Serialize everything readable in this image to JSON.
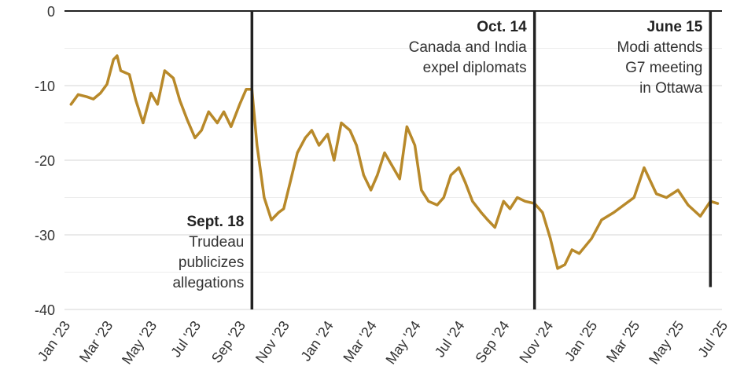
{
  "chart_data": {
    "type": "line",
    "ylim": [
      -40,
      0
    ],
    "yticks": [
      0,
      -10,
      -20,
      -30,
      -40
    ],
    "ytick_labels": [
      "0",
      "-10",
      "-20",
      "-30",
      "-40"
    ],
    "grid": "horizontal",
    "xlim": [
      "2023-01-01",
      "2025-07-01"
    ],
    "x_tick_labels": [
      "Jan '23",
      "Mar '23",
      "May '23",
      "Jul '23",
      "Sep '23",
      "Nov '23",
      "Jan '24",
      "Mar '24",
      "May '24",
      "Jul '24",
      "Sep '24",
      "Nov '24",
      "Jan '25",
      "Mar '25",
      "May '25",
      "Jul '25"
    ],
    "line_color": "#B8892A",
    "series": [
      {
        "x": [
          "2023-01-10",
          "2023-01-20",
          "2023-02-01",
          "2023-02-10",
          "2023-02-20",
          "2023-03-01",
          "2023-03-10",
          "2023-03-15",
          "2023-03-20",
          "2023-04-01",
          "2023-04-10",
          "2023-04-20",
          "2023-05-01",
          "2023-05-10",
          "2023-05-20",
          "2023-06-01",
          "2023-06-10",
          "2023-06-20",
          "2023-07-01",
          "2023-07-10",
          "2023-07-20",
          "2023-08-01",
          "2023-08-10",
          "2023-08-20",
          "2023-09-01",
          "2023-09-10",
          "2023-09-18",
          "2023-09-25",
          "2023-10-05",
          "2023-10-15",
          "2023-10-25",
          "2023-11-01",
          "2023-11-10",
          "2023-11-20",
          "2023-12-01",
          "2023-12-10",
          "2023-12-20",
          "2024-01-01",
          "2024-01-10",
          "2024-01-20",
          "2024-02-01",
          "2024-02-10",
          "2024-02-20",
          "2024-03-01",
          "2024-03-10",
          "2024-03-20",
          "2024-04-01",
          "2024-04-10",
          "2024-04-20",
          "2024-05-01",
          "2024-05-10",
          "2024-05-20",
          "2024-06-01",
          "2024-06-10",
          "2024-06-20",
          "2024-07-01",
          "2024-07-10",
          "2024-07-20",
          "2024-08-01",
          "2024-08-10",
          "2024-08-20",
          "2024-09-01",
          "2024-09-10",
          "2024-09-20",
          "2024-10-01",
          "2024-10-14",
          "2024-10-25",
          "2024-11-05",
          "2024-11-15",
          "2024-11-25",
          "2024-12-05",
          "2024-12-15",
          "2025-01-01",
          "2025-01-15",
          "2025-02-01",
          "2025-02-15",
          "2025-03-01",
          "2025-03-15",
          "2025-04-01",
          "2025-04-15",
          "2025-05-01",
          "2025-05-15",
          "2025-06-01",
          "2025-06-15",
          "2025-06-25"
        ],
        "y": [
          -12.5,
          -11.2,
          -11.5,
          -11.8,
          -11.0,
          -9.8,
          -6.5,
          -6.0,
          -8.0,
          -8.5,
          -12.0,
          -15.0,
          -11.0,
          -12.5,
          -8.0,
          -9.0,
          -12.0,
          -14.5,
          -17.0,
          -16.0,
          -13.5,
          -15.0,
          -13.5,
          -15.5,
          -12.5,
          -10.5,
          -10.5,
          -18.0,
          -25.0,
          -28.0,
          -27.0,
          -26.5,
          -23.0,
          -19.0,
          -17.0,
          -16.0,
          -18.0,
          -16.5,
          -20.0,
          -15.0,
          -16.0,
          -18.0,
          -22.0,
          -24.0,
          -22.0,
          -19.0,
          -21.0,
          -22.5,
          -15.5,
          -18.0,
          -24.0,
          -25.5,
          -26.0,
          -25.0,
          -22.0,
          -21.0,
          -23.0,
          -25.5,
          -27.0,
          -28.0,
          -29.0,
          -25.5,
          -26.5,
          -25.0,
          -25.5,
          -25.8,
          -27.0,
          -30.5,
          -34.5,
          -34.0,
          -32.0,
          -32.5,
          -30.5,
          -28.0,
          -27.0,
          -26.0,
          -25.0,
          -21.0,
          -24.5,
          -25.0,
          -24.0,
          -26.0,
          -27.5,
          -25.5,
          -25.8
        ]
      }
    ],
    "annotations": [
      {
        "date": "2023-09-18",
        "label": "Sept. 18",
        "lines": [
          "Trudeau",
          "publicizes",
          "allegations"
        ],
        "text_side": "left",
        "text_position": "bottom",
        "y_top": 0,
        "y_bottom": -40
      },
      {
        "date": "2024-10-14",
        "label": "Oct. 14",
        "lines": [
          "Canada and India",
          "expel diplomats"
        ],
        "text_side": "left",
        "text_position": "top",
        "y_top": 0,
        "y_bottom": -40
      },
      {
        "date": "2025-06-15",
        "label": "June 15",
        "lines": [
          "Modi attends",
          "G7 meeting",
          "in Ottawa"
        ],
        "text_side": "left",
        "text_position": "top",
        "y_top": 0,
        "y_bottom": -37
      }
    ]
  }
}
